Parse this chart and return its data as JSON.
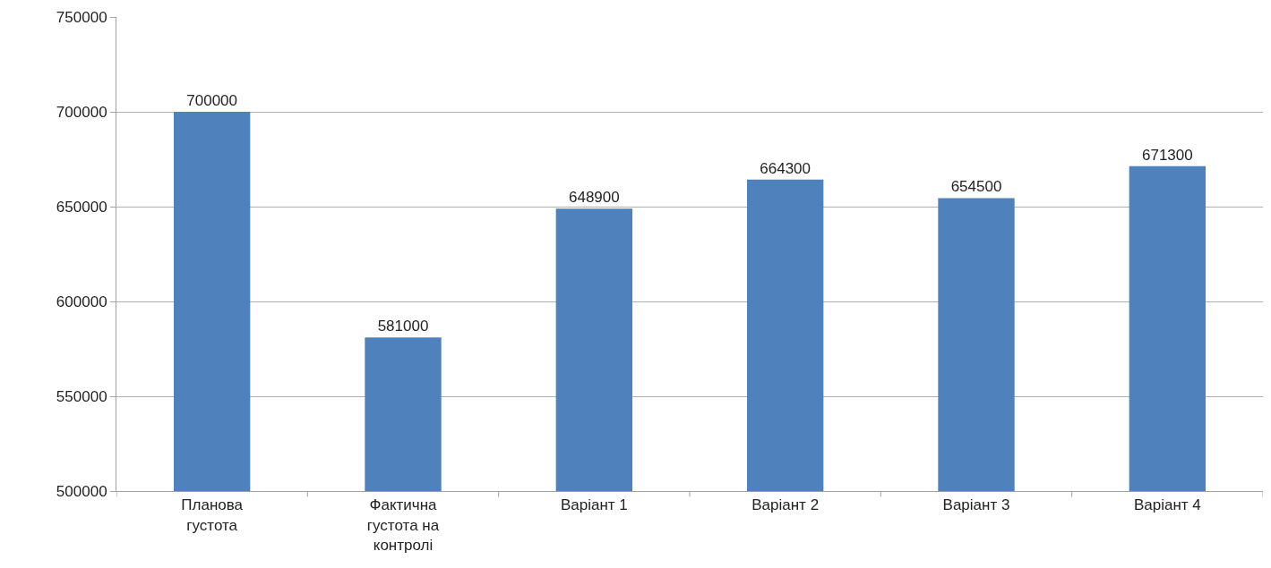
{
  "chart_data": {
    "type": "bar",
    "categories": [
      "Планова густота",
      "Фактична густота на контролі",
      "Варіант 1",
      "Варіант 2",
      "Варіант 3",
      "Варіант 4"
    ],
    "values": [
      700000,
      581000,
      648900,
      664300,
      654500,
      671300
    ],
    "color": "#4f81bd",
    "ylim": [
      500000,
      750000
    ],
    "yticks": [
      500000,
      550000,
      600000,
      650000,
      700000,
      750000
    ],
    "grid": "y",
    "data_labels": true
  }
}
